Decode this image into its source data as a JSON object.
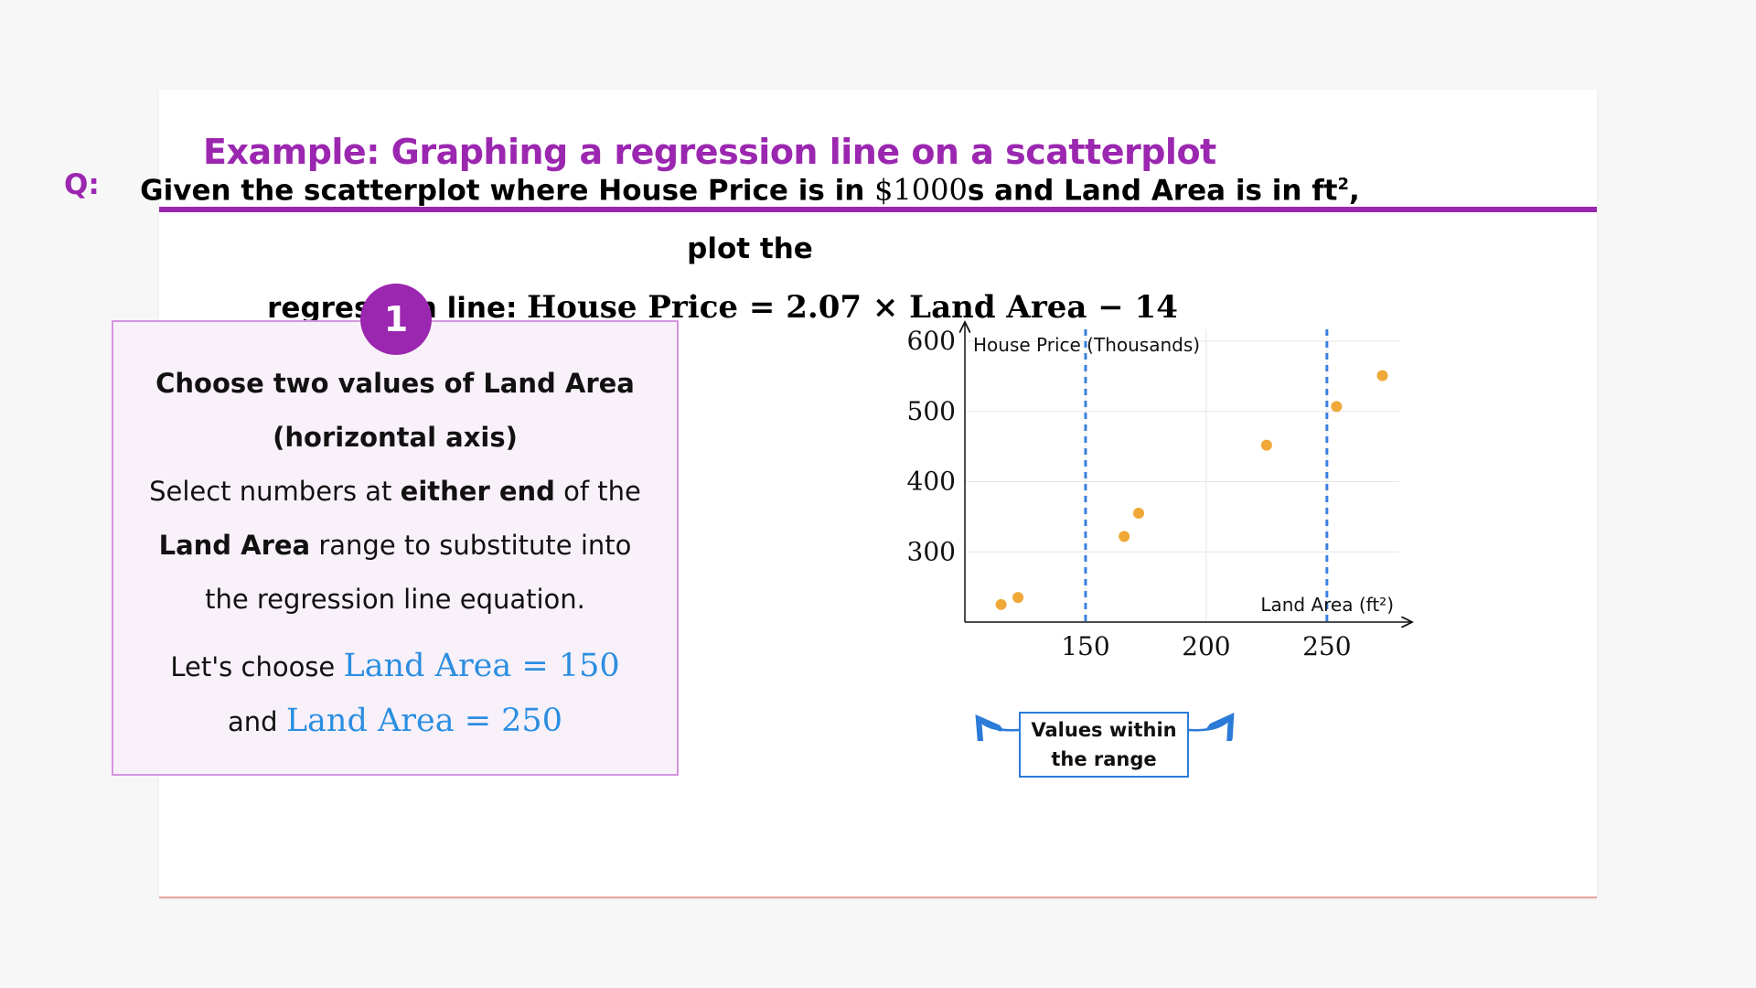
{
  "title": "Example: Graphing a regression line on a scatterplot",
  "question": {
    "label": "Q:",
    "line1_pre": "Given the scatterplot where House Price is in",
    "unit_price": "$1000",
    "line1_mid": "s and Land Area is in ft",
    "sq": "2",
    "line1_post": ", plot the",
    "line2_pre": "regression line:",
    "equation": "House Price = 2.07 × Land Area − 14"
  },
  "step": {
    "number": "1",
    "heading": "Choose two values of Land Area (horizontal axis)",
    "body_1": "Select numbers at ",
    "body_bold_1": "either end",
    "body_2": " of the ",
    "body_bold_2": "Land Area",
    "body_3": " range to substitute into the regression line equation.",
    "choose_pre": "Let's choose ",
    "choose_val_1": "Land Area = 150",
    "choose_and": "and ",
    "choose_val_2": "Land Area = 250"
  },
  "callout": {
    "line1": "Values within",
    "line2": "the range"
  },
  "colors": {
    "accent": "#9b27b0",
    "point": "#f0a838",
    "guide": "#3a7fe0",
    "math_blue": "#2b8ee0"
  },
  "chart_data": {
    "type": "scatter",
    "xlabel": "Land Area (ft²)",
    "ylabel": "House Price (Thousands)",
    "x_ticks": [
      150,
      200,
      250
    ],
    "y_ticks": [
      300,
      400,
      500,
      600
    ],
    "xlim": [
      100,
      280
    ],
    "ylim": [
      200,
      600
    ],
    "grid": true,
    "points": [
      {
        "x": 115,
        "y": 225
      },
      {
        "x": 122,
        "y": 235
      },
      {
        "x": 166,
        "y": 322
      },
      {
        "x": 172,
        "y": 355
      },
      {
        "x": 225,
        "y": 452
      },
      {
        "x": 254,
        "y": 507
      },
      {
        "x": 273,
        "y": 551
      }
    ],
    "guide_lines_x": [
      150,
      250
    ]
  }
}
